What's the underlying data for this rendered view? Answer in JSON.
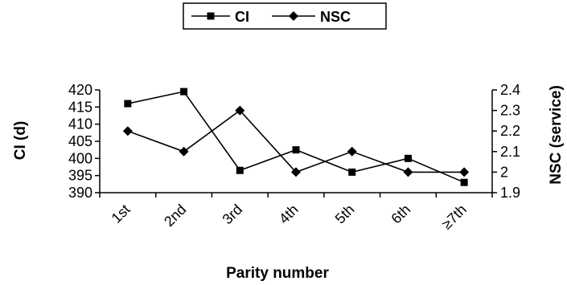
{
  "chart_data": {
    "type": "line",
    "categories": [
      "1st",
      "2nd",
      "3rd",
      "4th",
      "5th",
      "6th",
      "≥7th"
    ],
    "xlabel": "Parity number",
    "ylabel_left": "CI (d)",
    "ylabel_right": "NSC (service)",
    "ylim_left": [
      390,
      420
    ],
    "ylim_right": [
      1.9,
      2.4
    ],
    "yticks_left": [
      "390",
      "395",
      "400",
      "405",
      "410",
      "415",
      "420"
    ],
    "yticks_right": [
      "1.9",
      "2",
      "2.1",
      "2.2",
      "2.3",
      "2.4"
    ],
    "grid": false,
    "legend_position": "top-center",
    "series": [
      {
        "name": "CI",
        "axis": "left",
        "marker": "square",
        "color": "#000000",
        "values": [
          416,
          419.5,
          396.5,
          402.5,
          396,
          400,
          393
        ]
      },
      {
        "name": "NSC",
        "axis": "right",
        "marker": "diamond",
        "color": "#000000",
        "values": [
          2.2,
          2.1,
          2.3,
          2.0,
          2.1,
          2.0,
          2.0
        ]
      }
    ]
  }
}
